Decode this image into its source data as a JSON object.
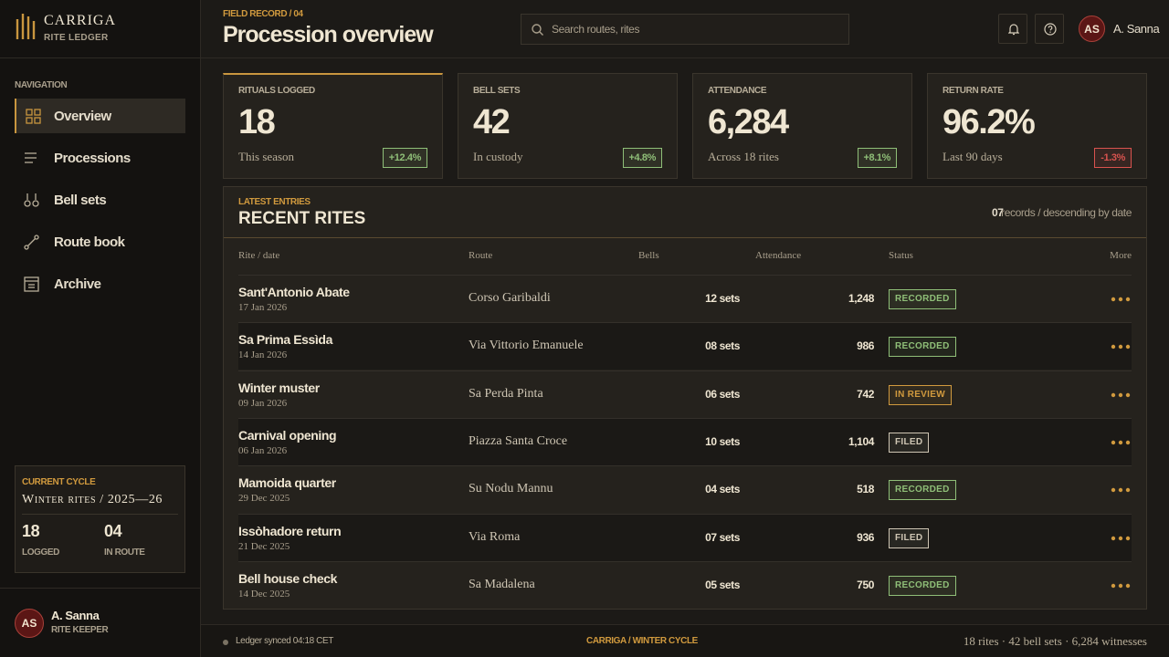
{
  "sidebar": {
    "brand": {
      "name": "CARRIGA",
      "sub": "RITE LEDGER"
    },
    "nav_label": "NAVIGATION",
    "nav": [
      {
        "label": "Overview",
        "active": true
      },
      {
        "label": "Processions",
        "active": false
      },
      {
        "label": "Bell sets",
        "active": false
      },
      {
        "label": "Route book",
        "active": false
      },
      {
        "label": "Archive",
        "active": false
      }
    ],
    "cycle": {
      "label": "CURRENT CYCLE",
      "title": "Winter rites / 2025—26",
      "stats": [
        {
          "value": "18",
          "label": "LOGGED"
        },
        {
          "value": "04",
          "label": "IN ROUTE"
        }
      ]
    },
    "user": {
      "initials": "AS",
      "name": "A. Sanna",
      "role": "RITE KEEPER"
    }
  },
  "header": {
    "eyebrow": "FIELD RECORD / 04",
    "title": "Procession overview",
    "search_placeholder": "Search routes, rites",
    "user": {
      "initials": "AS",
      "name": "A. Sanna"
    }
  },
  "kpis": [
    {
      "label": "RITUALS LOGGED",
      "value": "18",
      "note": "This season",
      "delta": "+12.4%",
      "color": "#8fbf78"
    },
    {
      "label": "BELL SETS",
      "value": "42",
      "note": "In custody",
      "delta": "+4.8%",
      "color": "#8fbf78"
    },
    {
      "label": "ATTENDANCE",
      "value": "6,284",
      "note": "Across 18 rites",
      "delta": "+8.1%",
      "color": "#8fbf78"
    },
    {
      "label": "RETURN RATE",
      "value": "96.2%",
      "note": "Last 90 days",
      "delta": "-1.3%",
      "color": "#d9534f"
    }
  ],
  "table": {
    "eyebrow": "LATEST ENTRIES",
    "title": "RECENT RITES",
    "count": "07",
    "count_note": "records / descending by date",
    "columns": [
      "Rite / date",
      "Route",
      "Bells",
      "Attendance",
      "Status",
      "More"
    ],
    "rows": [
      {
        "name": "Sant'Antonio Abate",
        "date": "17 Jan 2026",
        "route": "Corso Garibaldi",
        "bells": "12 sets",
        "attendance": "1,248",
        "status": "RECORDED",
        "color": "#8fbf78"
      },
      {
        "name": "Sa Prima Essìda",
        "date": "14 Jan 2026",
        "route": "Via Vittorio Emanuele",
        "bells": "08 sets",
        "attendance": "986",
        "status": "RECORDED",
        "color": "#8fbf78"
      },
      {
        "name": "Winter muster",
        "date": "09 Jan 2026",
        "route": "Sa Perda Pinta",
        "bells": "06 sets",
        "attendance": "742",
        "status": "IN REVIEW",
        "color": "#d19a3e"
      },
      {
        "name": "Carnival opening",
        "date": "06 Jan 2026",
        "route": "Piazza Santa Croce",
        "bells": "10 sets",
        "attendance": "1,104",
        "status": "FILED",
        "color": "#cfc6b4"
      },
      {
        "name": "Mamoida quarter",
        "date": "29 Dec 2025",
        "route": "Su Nodu Mannu",
        "bells": "04 sets",
        "attendance": "518",
        "status": "RECORDED",
        "color": "#8fbf78"
      },
      {
        "name": "Issòhadore return",
        "date": "21 Dec 2025",
        "route": "Via Roma",
        "bells": "07 sets",
        "attendance": "936",
        "status": "FILED",
        "color": "#cfc6b4"
      },
      {
        "name": "Bell house check",
        "date": "14 Dec 2025",
        "route": "Sa Madalena",
        "bells": "05 sets",
        "attendance": "750",
        "status": "RECORDED",
        "color": "#8fbf78"
      }
    ]
  },
  "footer": {
    "sync": "Ledger synced 04:18 CET",
    "center": "CARRIGA / WINTER CYCLE",
    "summary": "18 rites · 42 bell sets · 6,284 witnesses"
  }
}
